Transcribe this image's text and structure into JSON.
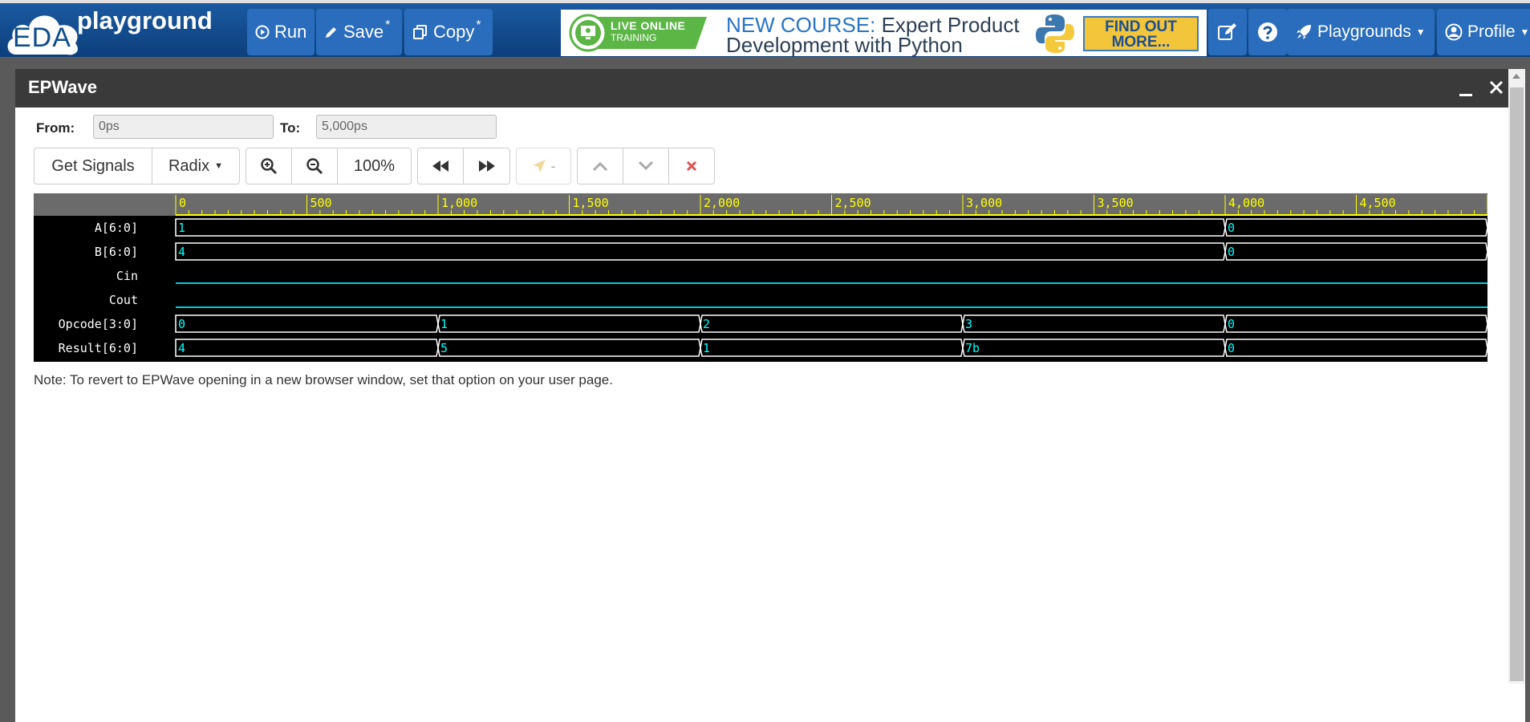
{
  "navbar": {
    "logo_text": "EDA",
    "brand": "playground",
    "run_label": "Run",
    "save_label": "Save",
    "copy_label": "Copy",
    "modified_marker": "*",
    "playgrounds_label": "Playgrounds",
    "profile_label": "Profile"
  },
  "ad": {
    "badge_line1": "LIVE ONLINE",
    "badge_line2": "TRAINING",
    "new_course": "NEW COURSE:",
    "course_title1": " Expert Product",
    "course_title2": "Development with Python",
    "cta_line1": "FIND OUT",
    "cta_line2": "MORE..."
  },
  "modal": {
    "title": "EPWave",
    "from_label": "From:",
    "from_value": "0ps",
    "to_label": "To:",
    "to_value": "5,000ps",
    "get_signals": "Get Signals",
    "radix": "Radix",
    "zoom_level": "100%",
    "cursor_value": "-",
    "note": "Note: To revert to EPWave opening in a new browser window, set that option on your user page."
  },
  "timeline": {
    "start": 0,
    "end": 5000,
    "major_ticks": [
      "0",
      "500",
      "1,000",
      "1,500",
      "2,000",
      "2,500",
      "3,000",
      "3,500",
      "4,000",
      "4,500"
    ]
  },
  "signals": [
    {
      "name": "A[6:0]",
      "type": "bus",
      "segments": [
        {
          "t": 0,
          "v": "1"
        },
        {
          "t": 4000,
          "v": "0"
        }
      ]
    },
    {
      "name": "B[6:0]",
      "type": "bus",
      "segments": [
        {
          "t": 0,
          "v": "4"
        },
        {
          "t": 4000,
          "v": "0"
        }
      ]
    },
    {
      "name": "Cin",
      "type": "bit",
      "level": 0
    },
    {
      "name": "Cout",
      "type": "bit",
      "level": 0
    },
    {
      "name": "Opcode[3:0]",
      "type": "bus",
      "segments": [
        {
          "t": 0,
          "v": "0"
        },
        {
          "t": 1000,
          "v": "1"
        },
        {
          "t": 2000,
          "v": "2"
        },
        {
          "t": 3000,
          "v": "3"
        },
        {
          "t": 4000,
          "v": "0"
        }
      ]
    },
    {
      "name": "Result[6:0]",
      "type": "bus",
      "segments": [
        {
          "t": 0,
          "v": "4"
        },
        {
          "t": 1000,
          "v": "5"
        },
        {
          "t": 2000,
          "v": "1"
        },
        {
          "t": 3000,
          "v": "7b"
        },
        {
          "t": 4000,
          "v": "0"
        }
      ]
    }
  ],
  "colors": {
    "timeline_bg": "#6b6b6b",
    "timeline_fg": "#ffff00",
    "wave_bg": "#000000",
    "bus_line": "#ffffff",
    "bit_line": "#00d0d0",
    "value_text": "#00ffff"
  }
}
